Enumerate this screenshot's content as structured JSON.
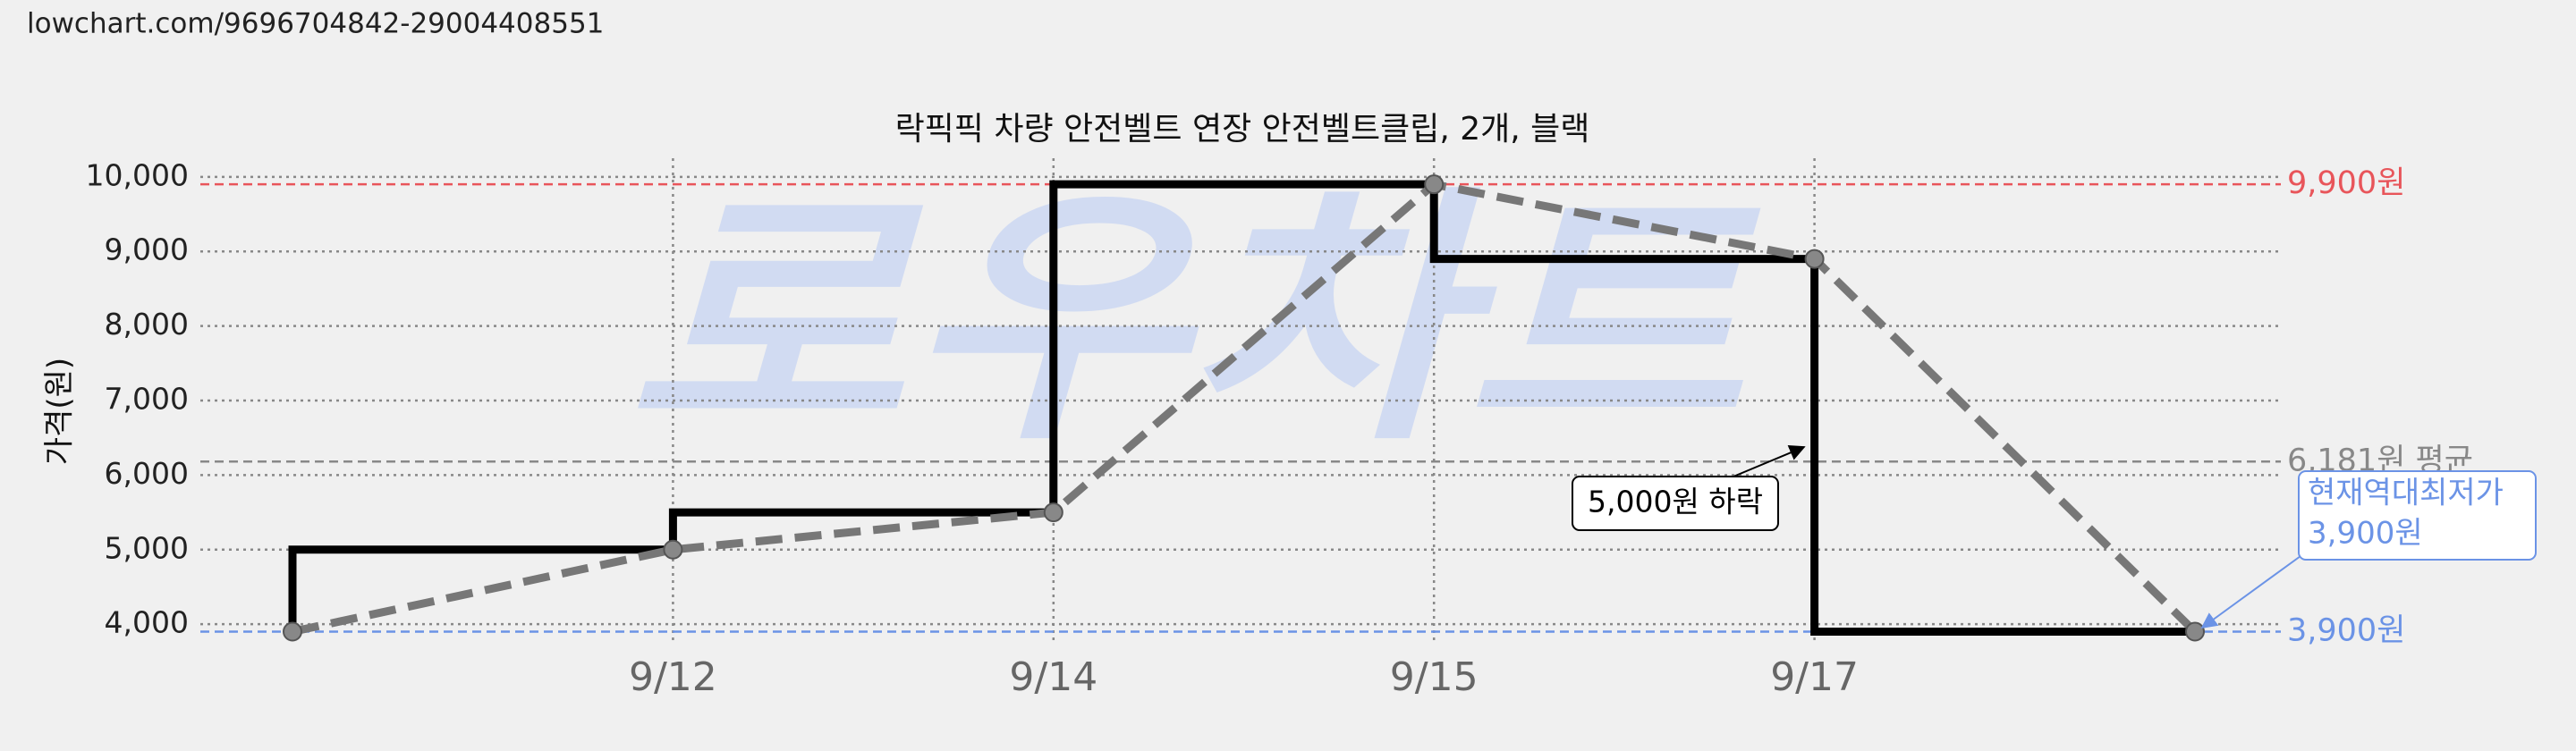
{
  "url": "lowchart.com/9696704842-29004408551",
  "chart_data": {
    "type": "line",
    "title": "락픽픽 차량 안전벨트 연장 안전벨트클립, 2개, 블랙",
    "y_label": "가격(원)",
    "watermark": "로우차트",
    "categories": [
      null,
      "9/12",
      "9/14",
      "9/15",
      "9/17",
      null
    ],
    "values": [
      3900,
      5000,
      5500,
      9900,
      8900,
      3900
    ],
    "step_color": "#000000",
    "trend_color": "#777777",
    "ylim": [
      3750,
      10250
    ],
    "yticks": [
      {
        "value": 4000,
        "label": "4,000"
      },
      {
        "value": 5000,
        "label": "5,000"
      },
      {
        "value": 6000,
        "label": "6,000"
      },
      {
        "value": 7000,
        "label": "7,000"
      },
      {
        "value": 8000,
        "label": "8,000"
      },
      {
        "value": 9000,
        "label": "9,000"
      },
      {
        "value": 10000,
        "label": "10,000"
      }
    ],
    "grid": true,
    "reference_lines": [
      {
        "value": 9900,
        "label": "9,900원",
        "color": "#e8555a"
      },
      {
        "value": 6181,
        "label": "6,181원 평균",
        "color": "#888888"
      },
      {
        "value": 3900,
        "label": "3,900원",
        "color": "#6b93e6"
      }
    ],
    "annotations": [
      {
        "text": "5,000원 하락"
      },
      {
        "lines": [
          "현재역대최저가",
          "3,900원"
        ]
      }
    ]
  }
}
